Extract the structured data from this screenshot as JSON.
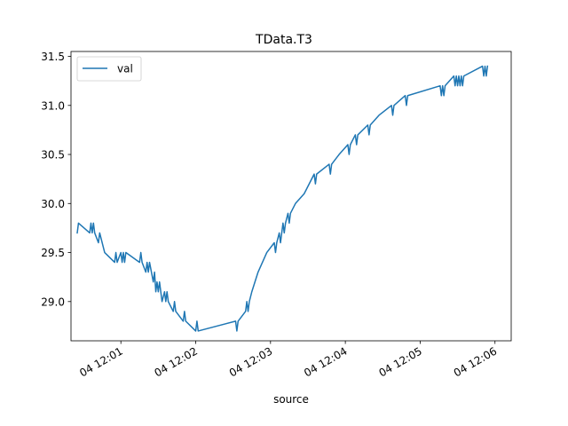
{
  "chart_data": {
    "type": "line",
    "title": "TData.T3",
    "xlabel": "source",
    "ylabel": "",
    "x_tick_labels": [
      "04 12:01",
      "04 12:02",
      "04 12:03",
      "04 12:04",
      "04 12:05",
      "04 12:06"
    ],
    "x_tick_values": [
      "12:01",
      "12:02",
      "12:03",
      "12:04",
      "12:05",
      "12:06"
    ],
    "xlim": [
      "12:00:20",
      "12:06:13"
    ],
    "y_ticks": [
      29.0,
      29.5,
      30.0,
      30.5,
      31.0,
      31.5
    ],
    "y_tick_labels": [
      "29.0",
      "29.5",
      "30.0",
      "30.5",
      "31.0",
      "31.5"
    ],
    "ylim": [
      28.6,
      31.55
    ],
    "grid": false,
    "legend": {
      "placement": "top-left",
      "entries": [
        "val"
      ]
    },
    "series": [
      {
        "name": "val",
        "color": "#1f77b4",
        "points": [
          [
            "12:00:25",
            29.7
          ],
          [
            "12:00:26",
            29.8
          ],
          [
            "12:00:35",
            29.7
          ],
          [
            "12:00:36",
            29.8
          ],
          [
            "12:00:37",
            29.7
          ],
          [
            "12:00:38",
            29.8
          ],
          [
            "12:00:39",
            29.7
          ],
          [
            "12:00:42",
            29.6
          ],
          [
            "12:00:43",
            29.7
          ],
          [
            "12:00:47",
            29.5
          ],
          [
            "12:00:55",
            29.4
          ],
          [
            "12:00:56",
            29.5
          ],
          [
            "12:00:57",
            29.4
          ],
          [
            "12:01:00",
            29.5
          ],
          [
            "12:01:01",
            29.4
          ],
          [
            "12:01:02",
            29.5
          ],
          [
            "12:01:03",
            29.4
          ],
          [
            "12:01:04",
            29.5
          ],
          [
            "12:01:15",
            29.4
          ],
          [
            "12:01:16",
            29.5
          ],
          [
            "12:01:17",
            29.4
          ],
          [
            "12:01:20",
            29.3
          ],
          [
            "12:01:21",
            29.4
          ],
          [
            "12:01:22",
            29.3
          ],
          [
            "12:01:23",
            29.4
          ],
          [
            "12:01:26",
            29.2
          ],
          [
            "12:01:27",
            29.3
          ],
          [
            "12:01:28",
            29.1
          ],
          [
            "12:01:29",
            29.2
          ],
          [
            "12:01:30",
            29.1
          ],
          [
            "12:01:31",
            29.2
          ],
          [
            "12:01:32",
            29.1
          ],
          [
            "12:01:33",
            29.0
          ],
          [
            "12:01:35",
            29.1
          ],
          [
            "12:01:36",
            29.0
          ],
          [
            "12:01:37",
            29.1
          ],
          [
            "12:01:38",
            29.0
          ],
          [
            "12:01:42",
            28.9
          ],
          [
            "12:01:43",
            29.0
          ],
          [
            "12:01:44",
            28.9
          ],
          [
            "12:01:50",
            28.8
          ],
          [
            "12:01:51",
            28.9
          ],
          [
            "12:01:52",
            28.8
          ],
          [
            "12:02:00",
            28.7
          ],
          [
            "12:02:01",
            28.8
          ],
          [
            "12:02:02",
            28.7
          ],
          [
            "12:02:32",
            28.8
          ],
          [
            "12:02:33",
            28.7
          ],
          [
            "12:02:34",
            28.8
          ],
          [
            "12:02:40",
            28.9
          ],
          [
            "12:02:41",
            29.0
          ],
          [
            "12:02:42",
            28.9
          ],
          [
            "12:02:43",
            29.0
          ],
          [
            "12:02:45",
            29.1
          ],
          [
            "12:02:50",
            29.3
          ],
          [
            "12:02:57",
            29.5
          ],
          [
            "12:03:03",
            29.6
          ],
          [
            "12:03:04",
            29.5
          ],
          [
            "12:03:05",
            29.6
          ],
          [
            "12:03:07",
            29.7
          ],
          [
            "12:03:08",
            29.6
          ],
          [
            "12:03:09",
            29.7
          ],
          [
            "12:03:10",
            29.8
          ],
          [
            "12:03:11",
            29.7
          ],
          [
            "12:03:12",
            29.8
          ],
          [
            "12:03:14",
            29.9
          ],
          [
            "12:03:15",
            29.8
          ],
          [
            "12:03:16",
            29.9
          ],
          [
            "12:03:20",
            30.0
          ],
          [
            "12:03:27",
            30.1
          ],
          [
            "12:03:35",
            30.3
          ],
          [
            "12:03:36",
            30.2
          ],
          [
            "12:03:37",
            30.3
          ],
          [
            "12:03:47",
            30.4
          ],
          [
            "12:03:48",
            30.3
          ],
          [
            "12:03:49",
            30.4
          ],
          [
            "12:03:55",
            30.5
          ],
          [
            "12:04:02",
            30.6
          ],
          [
            "12:04:03",
            30.5
          ],
          [
            "12:04:04",
            30.6
          ],
          [
            "12:04:08",
            30.7
          ],
          [
            "12:04:09",
            30.6
          ],
          [
            "12:04:10",
            30.7
          ],
          [
            "12:04:18",
            30.8
          ],
          [
            "12:04:19",
            30.7
          ],
          [
            "12:04:20",
            30.8
          ],
          [
            "12:04:27",
            30.9
          ],
          [
            "12:04:37",
            31.0
          ],
          [
            "12:04:38",
            30.9
          ],
          [
            "12:04:39",
            31.0
          ],
          [
            "12:04:48",
            31.1
          ],
          [
            "12:04:49",
            31.0
          ],
          [
            "12:04:50",
            31.1
          ],
          [
            "12:05:16",
            31.2
          ],
          [
            "12:05:17",
            31.1
          ],
          [
            "12:05:18",
            31.2
          ],
          [
            "12:05:19",
            31.1
          ],
          [
            "12:05:20",
            31.2
          ],
          [
            "12:05:27",
            31.3
          ],
          [
            "12:05:28",
            31.2
          ],
          [
            "12:05:29",
            31.3
          ],
          [
            "12:05:30",
            31.2
          ],
          [
            "12:05:31",
            31.3
          ],
          [
            "12:05:32",
            31.2
          ],
          [
            "12:05:33",
            31.3
          ],
          [
            "12:05:34",
            31.2
          ],
          [
            "12:05:35",
            31.3
          ],
          [
            "12:05:50",
            31.4
          ],
          [
            "12:05:51",
            31.3
          ],
          [
            "12:05:52",
            31.4
          ],
          [
            "12:05:53",
            31.3
          ],
          [
            "12:05:54",
            31.4
          ]
        ]
      }
    ]
  }
}
